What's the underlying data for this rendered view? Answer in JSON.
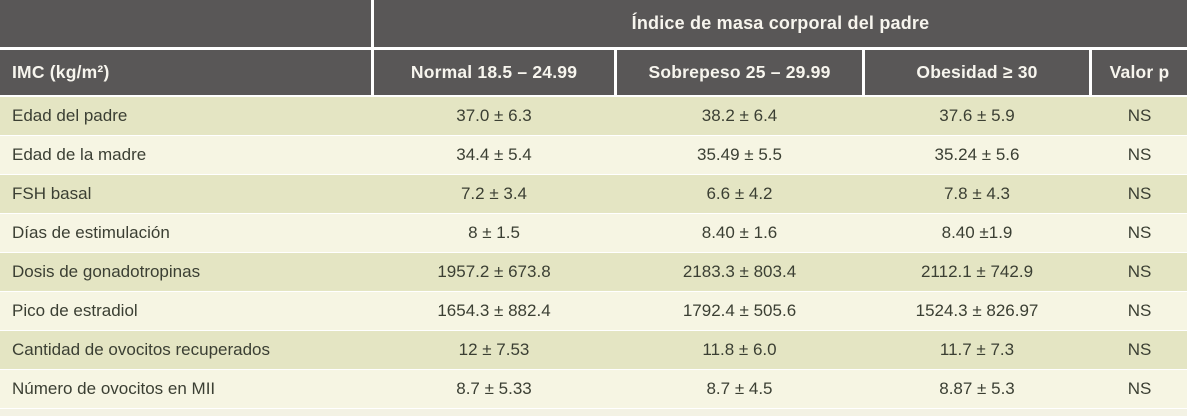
{
  "table": {
    "top_header": "Índice de masa corporal del padre",
    "col_headers": {
      "imc": "IMC (kg/m²)",
      "normal": "Normal 18.5 – 24.99",
      "sobrepeso": "Sobrepeso 25 – 29.99",
      "obesidad": "Obesidad ≥ 30",
      "valor_p": "Valor p"
    },
    "rows": [
      {
        "label": "Edad del padre",
        "normal": "37.0 ± 6.3",
        "sobrepeso": "38.2 ± 6.4",
        "obesidad": "37.6 ± 5.9",
        "valor_p": "NS"
      },
      {
        "label": "Edad de la madre",
        "normal": "34.4 ± 5.4",
        "sobrepeso": "35.49 ± 5.5",
        "obesidad": "35.24 ± 5.6",
        "valor_p": "NS"
      },
      {
        "label": "FSH basal",
        "normal": "7.2 ± 3.4",
        "sobrepeso": "6.6 ± 4.2",
        "obesidad": "7.8 ± 4.3",
        "valor_p": "NS"
      },
      {
        "label": "Días de estimulación",
        "normal": "8 ± 1.5",
        "sobrepeso": "8.40 ± 1.6",
        "obesidad": "8.40 ±1.9",
        "valor_p": "NS"
      },
      {
        "label": "Dosis de gonadotropinas",
        "normal": "1957.2 ± 673.8",
        "sobrepeso": "2183.3 ± 803.4",
        "obesidad": "2112.1 ± 742.9",
        "valor_p": "NS"
      },
      {
        "label": "Pico de estradiol",
        "normal": "1654.3 ± 882.4",
        "sobrepeso": "1792.4 ± 505.6",
        "obesidad": "1524.3 ± 826.97",
        "valor_p": "NS"
      },
      {
        "label": "Cantidad de ovocitos recuperados",
        "normal": "12 ± 7.53",
        "sobrepeso": "11.8 ± 6.0",
        "obesidad": "11.7 ± 7.3",
        "valor_p": "NS"
      },
      {
        "label": "Número de ovocitos en MII",
        "normal": "8.7 ± 5.33",
        "sobrepeso": "8.7 ± 4.5",
        "obesidad": "8.87 ± 5.3",
        "valor_p": "NS"
      }
    ]
  },
  "colors": {
    "header_bg": "#595757",
    "header_text": "#f7f5ee",
    "row_olive": "#e4e5c3",
    "row_cream": "#f6f5e3",
    "body_text": "#3b3f33",
    "bottom_strip": "#f3f2e4"
  },
  "chart_data": {
    "type": "table",
    "title": "Índice de masa corporal del padre",
    "columns": [
      "IMC (kg/m²)",
      "Normal 18.5 – 24.99",
      "Sobrepeso 25 – 29.99",
      "Obesidad ≥ 30",
      "Valor p"
    ],
    "rows": [
      [
        "Edad del padre",
        "37.0 ± 6.3",
        "38.2 ± 6.4",
        "37.6 ± 5.9",
        "NS"
      ],
      [
        "Edad de la madre",
        "34.4 ± 5.4",
        "35.49 ± 5.5",
        "35.24 ± 5.6",
        "NS"
      ],
      [
        "FSH basal",
        "7.2 ± 3.4",
        "6.6 ± 4.2",
        "7.8 ± 4.3",
        "NS"
      ],
      [
        "Días de estimulación",
        "8 ± 1.5",
        "8.40 ± 1.6",
        "8.40 ±1.9",
        "NS"
      ],
      [
        "Dosis de gonadotropinas",
        "1957.2 ± 673.8",
        "2183.3 ± 803.4",
        "2112.1 ± 742.9",
        "NS"
      ],
      [
        "Pico de estradiol",
        "1654.3 ± 882.4",
        "1792.4 ± 505.6",
        "1524.3 ± 826.97",
        "NS"
      ],
      [
        "Cantidad de ovocitos recuperados",
        "12 ± 7.53",
        "11.8 ± 6.0",
        "11.7 ± 7.3",
        "NS"
      ],
      [
        "Número de ovocitos en MII",
        "8.7 ± 5.33",
        "8.7 ± 4.5",
        "8.87 ± 5.3",
        "NS"
      ]
    ]
  }
}
